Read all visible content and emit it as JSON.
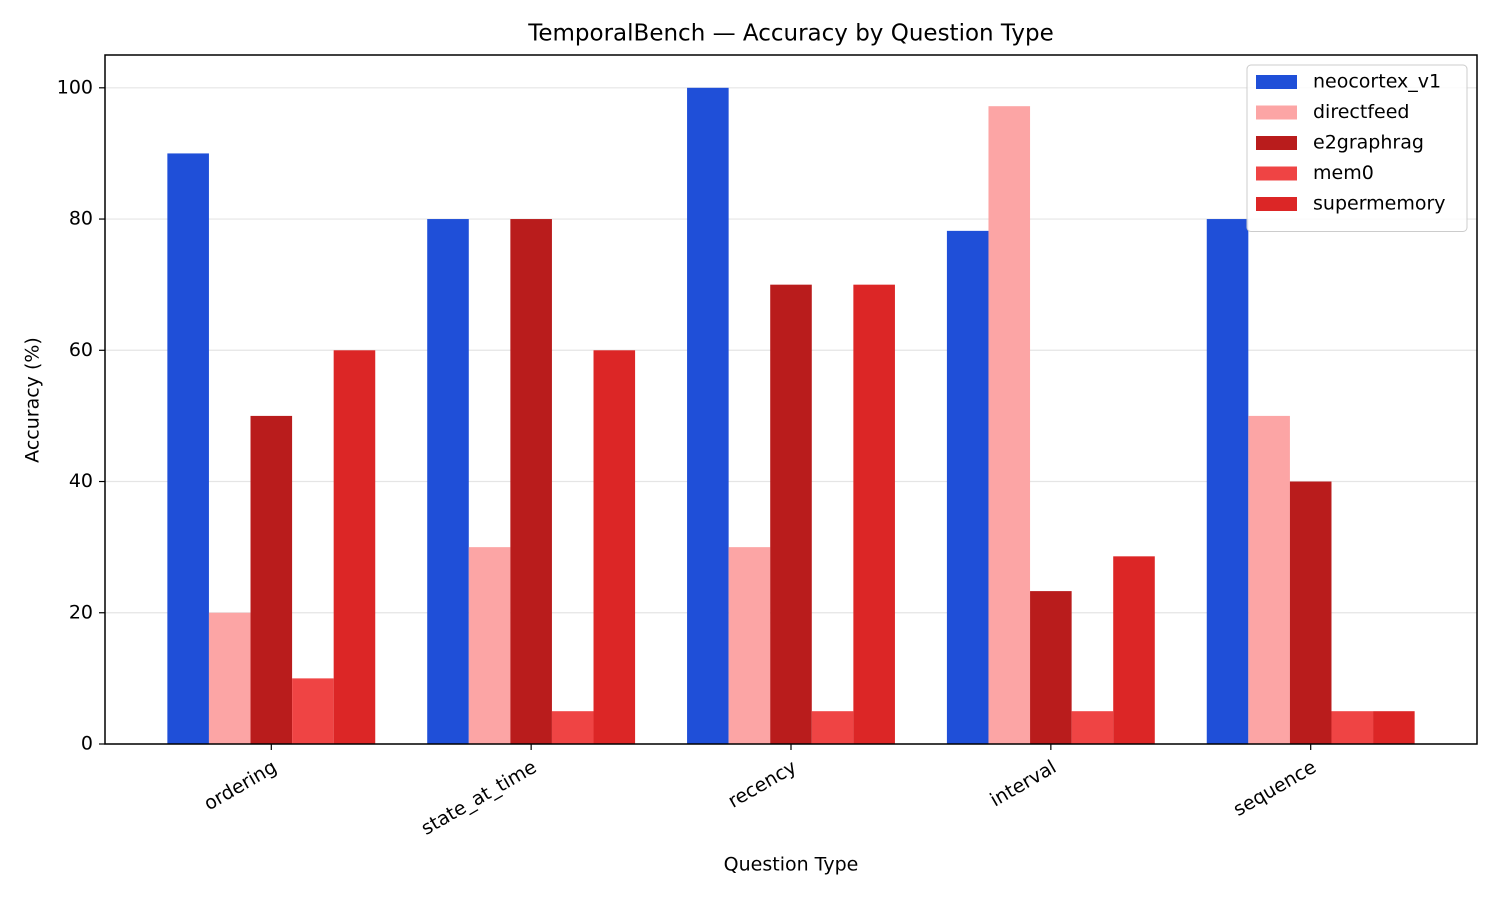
{
  "chart_data": {
    "type": "bar",
    "title": "TemporalBench — Accuracy by Question Type",
    "xlabel": "Question Type",
    "ylabel": "Accuracy (%)",
    "categories": [
      "ordering",
      "state_at_time",
      "recency",
      "interval",
      "sequence"
    ],
    "series": [
      {
        "name": "neocortex_v1",
        "color": "#1f4fd8",
        "values": [
          90,
          80,
          100,
          78.2,
          80
        ]
      },
      {
        "name": "directfeed",
        "color": "#fca5a5",
        "values": [
          20,
          30,
          30,
          97.2,
          50
        ]
      },
      {
        "name": "e2graphrag",
        "color": "#b91c1c",
        "values": [
          50,
          80,
          70,
          23.3,
          40
        ]
      },
      {
        "name": "mem0",
        "color": "#ef4444",
        "values": [
          10,
          5,
          5,
          5,
          5
        ]
      },
      {
        "name": "supermemory",
        "color": "#dc2626",
        "values": [
          60,
          60,
          70,
          28.6,
          5
        ]
      }
    ],
    "ylim": [
      0,
      105
    ],
    "yticks": [
      0,
      20,
      40,
      60,
      80,
      100
    ],
    "grid": true,
    "legend": "upper right"
  }
}
